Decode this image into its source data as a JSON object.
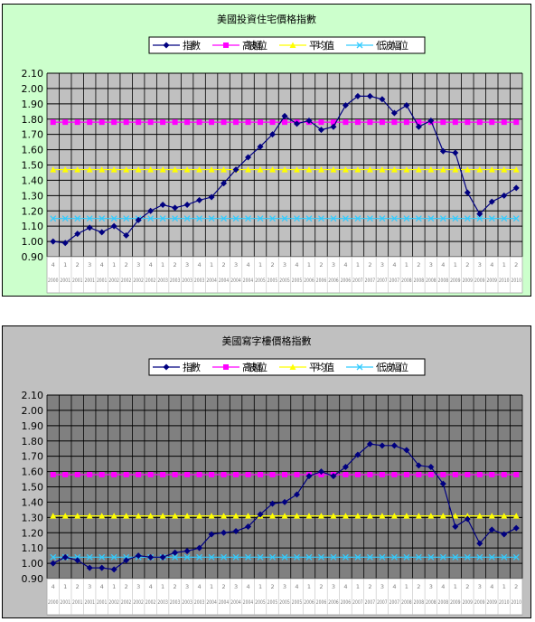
{
  "chart_data": [
    {
      "type": "line",
      "title": "美國投資住宅價格指數",
      "xlabel": "",
      "ylabel": "",
      "ylim": [
        0.9,
        2.1
      ],
      "yticks": [
        "2.10",
        "2.00",
        "1.90",
        "1.80",
        "1.70",
        "1.60",
        "1.50",
        "1.40",
        "1.30",
        "1.20",
        "1.10",
        "1.00",
        "0.90"
      ],
      "grid": true,
      "legend_position": "top",
      "categories": [
        "4",
        "1",
        "2",
        "3",
        "4",
        "1",
        "2",
        "3",
        "4",
        "1",
        "2",
        "3",
        "4",
        "1",
        "2",
        "3",
        "4",
        "1",
        "2",
        "3",
        "4",
        "1",
        "2",
        "3",
        "4",
        "1",
        "2",
        "3",
        "4",
        "1",
        "2",
        "3",
        "4",
        "1",
        "2",
        "3",
        "4",
        "1",
        "2"
      ],
      "years": [
        "2000",
        "2001",
        "2001",
        "2001",
        "2001",
        "2002",
        "2002",
        "2002",
        "2002",
        "2003",
        "2003",
        "2003",
        "2003",
        "2004",
        "2004",
        "2004",
        "2004",
        "2005",
        "2005",
        "2005",
        "2005",
        "2006",
        "2006",
        "2006",
        "2006",
        "2007",
        "2007",
        "2007",
        "2007",
        "2008",
        "2008",
        "2008",
        "2008",
        "2009",
        "2009",
        "2009",
        "2009",
        "2010",
        "2010"
      ],
      "colors": {
        "plot_bg": "#c0c0c0",
        "outer_bg": "#ccffcc",
        "grid": "#000000"
      },
      "series": [
        {
          "name": "指數",
          "color": "#000080",
          "marker": "diamond",
          "values": [
            1.0,
            0.99,
            1.05,
            1.09,
            1.06,
            1.1,
            1.04,
            1.14,
            1.2,
            1.24,
            1.22,
            1.24,
            1.27,
            1.29,
            1.38,
            1.47,
            1.55,
            1.62,
            1.7,
            1.82,
            1.77,
            1.79,
            1.73,
            1.75,
            1.89,
            1.95,
            1.95,
            1.93,
            1.84,
            1.89,
            1.75,
            1.79,
            1.59,
            1.58,
            1.32,
            1.18,
            1.26,
            1.3,
            1.35
          ]
        },
        {
          "name": "高波幅位",
          "color": "#ff00ff",
          "marker": "square",
          "constant": 1.78
        },
        {
          "name": "平均值",
          "color": "#ffff00",
          "marker": "triangle",
          "constant": 1.47
        },
        {
          "name": "低波幅位",
          "color": "#33ccff",
          "marker": "x",
          "constant": 1.15
        }
      ]
    },
    {
      "type": "line",
      "title": "美國寫字樓價格指數",
      "xlabel": "",
      "ylabel": "",
      "ylim": [
        0.9,
        2.1
      ],
      "yticks": [
        "2.10",
        "2.00",
        "1.90",
        "1.80",
        "1.70",
        "1.60",
        "1.50",
        "1.40",
        "1.30",
        "1.20",
        "1.10",
        "1.00",
        "0.90"
      ],
      "grid": true,
      "legend_position": "top",
      "categories": [
        "4",
        "1",
        "2",
        "3",
        "4",
        "1",
        "2",
        "3",
        "4",
        "1",
        "2",
        "3",
        "4",
        "1",
        "2",
        "3",
        "4",
        "1",
        "2",
        "3",
        "4",
        "1",
        "2",
        "3",
        "4",
        "1",
        "2",
        "3",
        "4",
        "1",
        "2",
        "3",
        "4",
        "1",
        "2",
        "3",
        "4",
        "1",
        "2"
      ],
      "years": [
        "2000",
        "2001",
        "2001",
        "2001",
        "2001",
        "2002",
        "2002",
        "2002",
        "2002",
        "2003",
        "2003",
        "2003",
        "2003",
        "2004",
        "2004",
        "2004",
        "2004",
        "2005",
        "2005",
        "2005",
        "2005",
        "2006",
        "2006",
        "2006",
        "2006",
        "2007",
        "2007",
        "2007",
        "2007",
        "2008",
        "2008",
        "2008",
        "2008",
        "2009",
        "2009",
        "2009",
        "2009",
        "2010",
        "2010"
      ],
      "colors": {
        "plot_bg": "#808080",
        "outer_bg": "#c0c0c0",
        "grid": "#000000"
      },
      "series": [
        {
          "name": "指數",
          "color": "#000080",
          "marker": "diamond",
          "values": [
            1.0,
            1.04,
            1.02,
            0.97,
            0.97,
            0.96,
            1.02,
            1.05,
            1.04,
            1.04,
            1.07,
            1.08,
            1.1,
            1.19,
            1.2,
            1.21,
            1.24,
            1.32,
            1.39,
            1.4,
            1.45,
            1.57,
            1.6,
            1.57,
            1.63,
            1.71,
            1.78,
            1.77,
            1.77,
            1.74,
            1.64,
            1.63,
            1.52,
            1.24,
            1.29,
            1.13,
            1.22,
            1.19,
            1.23
          ]
        },
        {
          "name": "高波幅位",
          "color": "#ff00ff",
          "marker": "square",
          "constant": 1.58
        },
        {
          "name": "平均值",
          "color": "#ffff00",
          "marker": "triangle",
          "constant": 1.31
        },
        {
          "name": "低波幅位",
          "color": "#33ccff",
          "marker": "x",
          "constant": 1.04
        }
      ]
    }
  ]
}
